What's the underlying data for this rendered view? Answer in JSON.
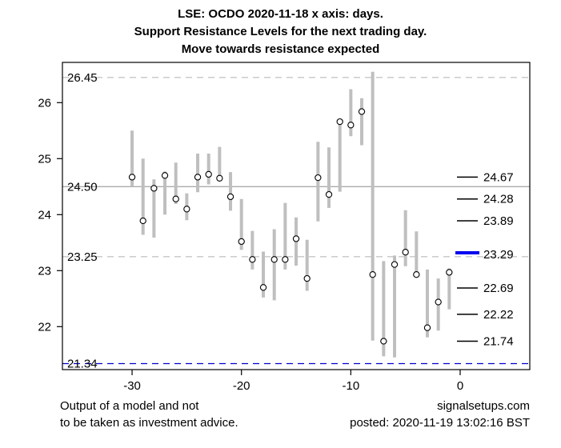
{
  "page": {
    "titles": [
      "LSE: OCDO 2020-11-18 x axis: days.",
      "Support Resistance Levels for the next trading day.",
      "Move towards resistance expected"
    ],
    "footer": {
      "disclaimer_line1": "Output of a model and not",
      "disclaimer_line2": "to be taken as investment advice.",
      "site": "signalsetups.com",
      "posted": "posted: 2020-11-19 13:02:16 BST"
    }
  },
  "chart_data": {
    "type": "hlc_range",
    "title": "LSE: OCDO 2020-11-18 x axis: days.",
    "subtitle": "Support Resistance Levels for the next trading day.",
    "annotation": "Move towards resistance expected",
    "xlabel": "days",
    "ylabel": "",
    "x_ticks": [
      -30,
      -20,
      -10,
      0
    ],
    "y_ticks": [
      22,
      23,
      24,
      25,
      26
    ],
    "xlim": [
      -36.4,
      6.4
    ],
    "ylim": [
      21.2,
      26.7
    ],
    "grid": false,
    "marker": "open-circle",
    "series": [
      {
        "day": -30,
        "high": 25.5,
        "low": 24.5,
        "close": 24.67
      },
      {
        "day": -29,
        "high": 25.0,
        "low": 23.64,
        "close": 23.89
      },
      {
        "day": -28,
        "high": 24.63,
        "low": 23.59,
        "close": 24.47
      },
      {
        "day": -27,
        "high": 24.77,
        "low": 24.0,
        "close": 24.7
      },
      {
        "day": -26,
        "high": 24.93,
        "low": 24.19,
        "close": 24.28
      },
      {
        "day": -25,
        "high": 24.38,
        "low": 23.9,
        "close": 24.1
      },
      {
        "day": -24,
        "high": 25.09,
        "low": 24.4,
        "close": 24.67
      },
      {
        "day": -23,
        "high": 25.09,
        "low": 24.54,
        "close": 24.72
      },
      {
        "day": -22,
        "high": 25.21,
        "low": 24.62,
        "close": 24.65
      },
      {
        "day": -21,
        "high": 24.76,
        "low": 24.07,
        "close": 24.32
      },
      {
        "day": -20,
        "high": 24.28,
        "low": 23.37,
        "close": 23.52
      },
      {
        "day": -19,
        "high": 23.71,
        "low": 23.02,
        "close": 23.2
      },
      {
        "day": -18,
        "high": 23.34,
        "low": 22.52,
        "close": 22.7
      },
      {
        "day": -17,
        "high": 23.74,
        "low": 22.47,
        "close": 23.2
      },
      {
        "day": -16,
        "high": 24.21,
        "low": 23.02,
        "close": 23.2
      },
      {
        "day": -15,
        "high": 23.95,
        "low": 23.09,
        "close": 23.57
      },
      {
        "day": -14,
        "high": 23.55,
        "low": 22.64,
        "close": 22.86
      },
      {
        "day": -13,
        "high": 25.3,
        "low": 23.88,
        "close": 24.66
      },
      {
        "day": -12,
        "high": 25.2,
        "low": 24.12,
        "close": 24.36
      },
      {
        "day": -11,
        "high": 25.71,
        "low": 24.41,
        "close": 25.66
      },
      {
        "day": -10,
        "high": 26.24,
        "low": 25.4,
        "close": 25.6
      },
      {
        "day": -9,
        "high": 26.08,
        "low": 25.24,
        "close": 25.84
      },
      {
        "day": -8,
        "high": 26.55,
        "low": 21.75,
        "close": 22.93
      },
      {
        "day": -7,
        "high": 23.17,
        "low": 21.47,
        "close": 21.74
      },
      {
        "day": -6,
        "high": 23.27,
        "low": 21.45,
        "close": 23.11
      },
      {
        "day": -5,
        "high": 24.08,
        "low": 23.08,
        "close": 23.33
      },
      {
        "day": -4,
        "high": 23.7,
        "low": 22.9,
        "close": 22.93
      },
      {
        "day": -3,
        "high": 23.02,
        "low": 21.81,
        "close": 21.98
      },
      {
        "day": -2,
        "high": 22.86,
        "low": 21.93,
        "close": 22.44
      },
      {
        "day": -1,
        "high": 23.04,
        "low": 22.31,
        "close": 22.97
      }
    ],
    "support_resistance_lines": [
      {
        "value": 26.45,
        "label": "26.45",
        "line": "dashed",
        "color": "#c6c6c6"
      },
      {
        "value": 24.5,
        "label": "24.50",
        "line": "solid",
        "color": "#ababab"
      },
      {
        "value": 23.25,
        "label": "23.25",
        "line": "dashed",
        "color": "#c6c6c6"
      },
      {
        "value": 21.34,
        "label": "21.34",
        "line": "dashed",
        "color": "#0000cc"
      }
    ],
    "level_markers_right": [
      {
        "value": 24.67,
        "label": "24.67",
        "emphasis": false
      },
      {
        "value": 24.28,
        "label": "24.28",
        "emphasis": false
      },
      {
        "value": 23.89,
        "label": "23.89",
        "emphasis": false
      },
      {
        "value": 23.29,
        "label": "23.29",
        "emphasis": true
      },
      {
        "value": 22.69,
        "label": "22.69",
        "emphasis": false
      },
      {
        "value": 22.22,
        "label": "22.22",
        "emphasis": false
      },
      {
        "value": 21.74,
        "label": "21.74",
        "emphasis": false
      }
    ],
    "legend_position": "none",
    "colors": {
      "bar": "#bfbfbf",
      "marker_stroke": "#000000",
      "marker_fill": "#ffffff",
      "axis": "#000000",
      "level_black": "#000000",
      "level_blue": "#0000ee"
    }
  }
}
